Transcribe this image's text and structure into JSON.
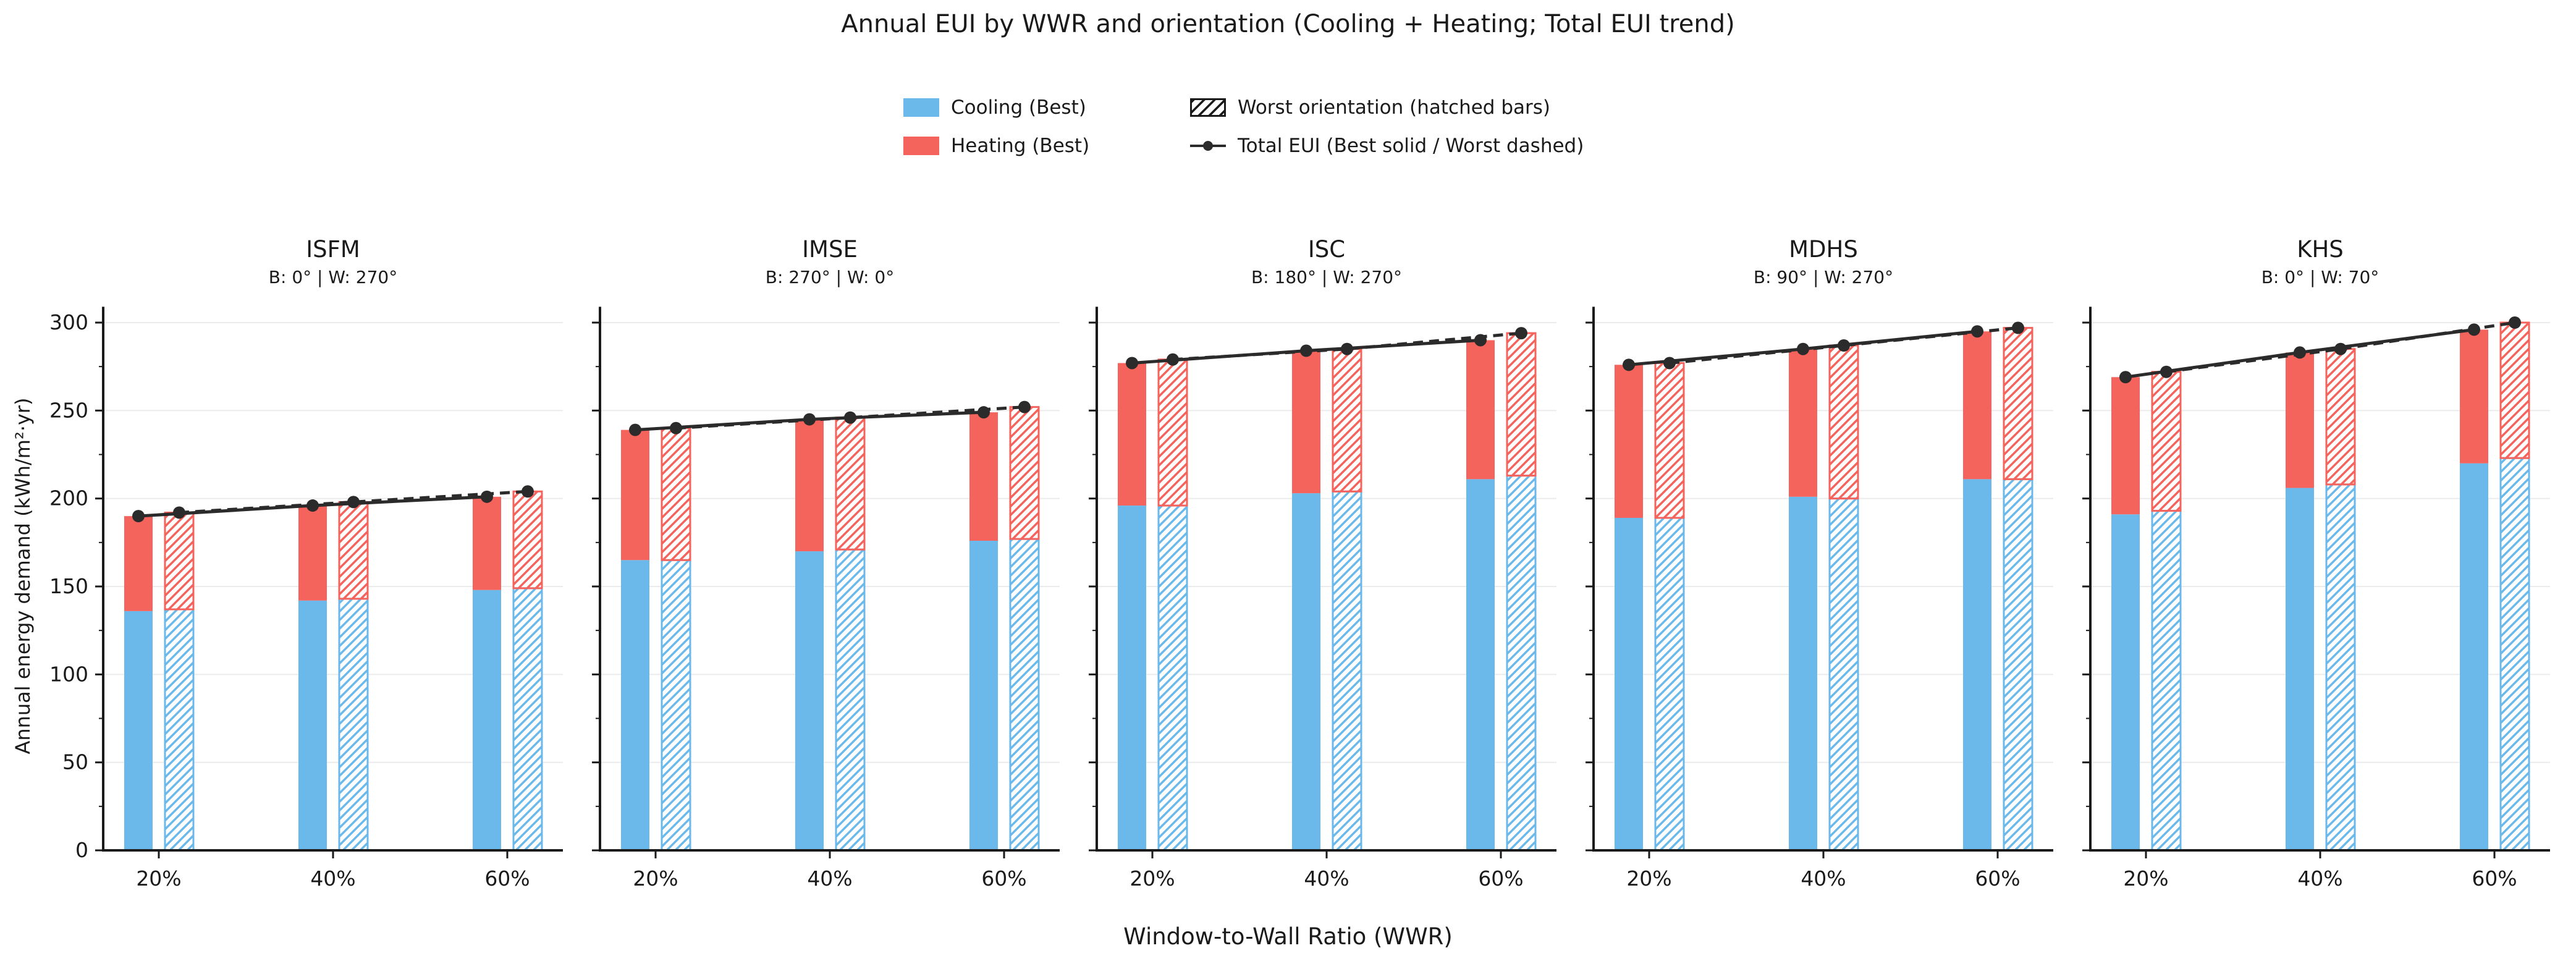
{
  "figure": {
    "title": "Annual EUI by WWR and orientation (Cooling + Heating; Total EUI trend)",
    "x_axis_label": "Window-to-Wall Ratio (WWR)",
    "y_axis_label": "Annual energy demand (kWh/m²·yr)"
  },
  "legend": {
    "cooling": "Cooling (Best)",
    "heating": "Heating (Best)",
    "worst": "Worst orientation (hatched bars)",
    "total": "Total EUI (Best solid / Worst dashed)"
  },
  "colors": {
    "cooling_blue": "#6BB9EA",
    "heating_red": "#F5635D",
    "line_dark": "#2b2b2b",
    "grid": "#ebebeb",
    "spine": "#1a1a1a",
    "hatch_bg": "#ffffff"
  },
  "chart_data": {
    "type": "bar",
    "stacked": true,
    "grid": "horizontal",
    "legend_position": "top-center",
    "categories": [
      "20%",
      "40%",
      "60%"
    ],
    "y_ticks": [
      0,
      50,
      100,
      150,
      200,
      250,
      300
    ],
    "ylim": [
      0,
      312
    ],
    "xlabel": "Window-to-Wall Ratio (WWR)",
    "ylabel": "Annual energy demand (kWh/m²·yr)",
    "charts": [
      {
        "name": "ISFM",
        "subtitle": "B: 0° | W: 270°",
        "best": {
          "cooling": [
            136,
            142,
            148
          ],
          "heating": [
            54,
            54,
            53
          ],
          "total": [
            190,
            196,
            201
          ]
        },
        "worst": {
          "cooling": [
            137,
            143,
            149
          ],
          "heating": [
            55,
            55,
            55
          ],
          "total": [
            192,
            198,
            204
          ]
        }
      },
      {
        "name": "IMSE",
        "subtitle": "B: 270° | W: 0°",
        "best": {
          "cooling": [
            165,
            170,
            176
          ],
          "heating": [
            74,
            75,
            73
          ],
          "total": [
            239,
            245,
            249
          ]
        },
        "worst": {
          "cooling": [
            165,
            171,
            177
          ],
          "heating": [
            75,
            75,
            75
          ],
          "total": [
            240,
            246,
            252
          ]
        }
      },
      {
        "name": "ISC",
        "subtitle": "B: 180° | W: 270°",
        "best": {
          "cooling": [
            196,
            203,
            211
          ],
          "heating": [
            81,
            81,
            79
          ],
          "total": [
            277,
            284,
            290
          ]
        },
        "worst": {
          "cooling": [
            196,
            204,
            213
          ],
          "heating": [
            83,
            81,
            81
          ],
          "total": [
            279,
            285,
            294
          ]
        }
      },
      {
        "name": "MDHS",
        "subtitle": "B: 90° | W: 270°",
        "best": {
          "cooling": [
            189,
            201,
            211
          ],
          "heating": [
            87,
            84,
            84
          ],
          "total": [
            276,
            285,
            295
          ]
        },
        "worst": {
          "cooling": [
            189,
            200,
            211
          ],
          "heating": [
            88,
            87,
            86
          ],
          "total": [
            277,
            287,
            297
          ]
        }
      },
      {
        "name": "KHS",
        "subtitle": "B: 0° | W: 70°",
        "best": {
          "cooling": [
            191,
            206,
            220
          ],
          "heating": [
            78,
            77,
            76
          ],
          "total": [
            269,
            283,
            296
          ]
        },
        "worst": {
          "cooling": [
            193,
            208,
            223
          ],
          "heating": [
            79,
            77,
            77
          ],
          "total": [
            272,
            285,
            300
          ]
        }
      }
    ]
  }
}
